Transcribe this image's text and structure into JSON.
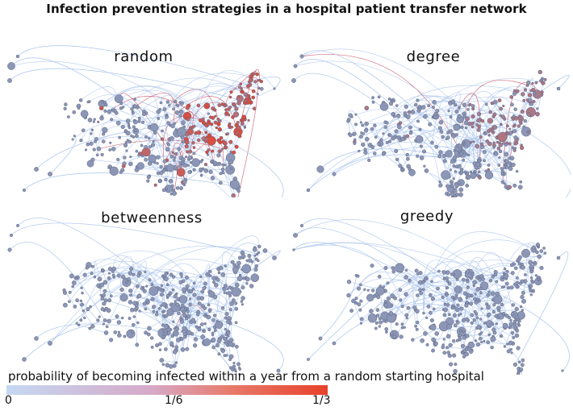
{
  "title": "Infection prevention strategies in a hospital patient transfer network",
  "panels": [
    {
      "id": "random",
      "label": "random",
      "hot_level": 1.0
    },
    {
      "id": "degree",
      "label": "degree",
      "hot_level": 0.45
    },
    {
      "id": "betweenness",
      "label": "betweenness",
      "hot_level": 0.12
    },
    {
      "id": "greedy",
      "label": "greedy",
      "hot_level": 0.05
    }
  ],
  "legend": {
    "caption": "probability of becoming infected within a year from a random starting hospital",
    "ticks": [
      "0",
      "1/6",
      "1/3"
    ],
    "colors": {
      "low": "#c5d9f3",
      "mid": "#d6a9c8",
      "high": "#e8412a"
    }
  },
  "colors": {
    "edge": "#a9c4ec",
    "node_fill": "#8c96b6",
    "node_stroke": "#5d6684"
  }
}
